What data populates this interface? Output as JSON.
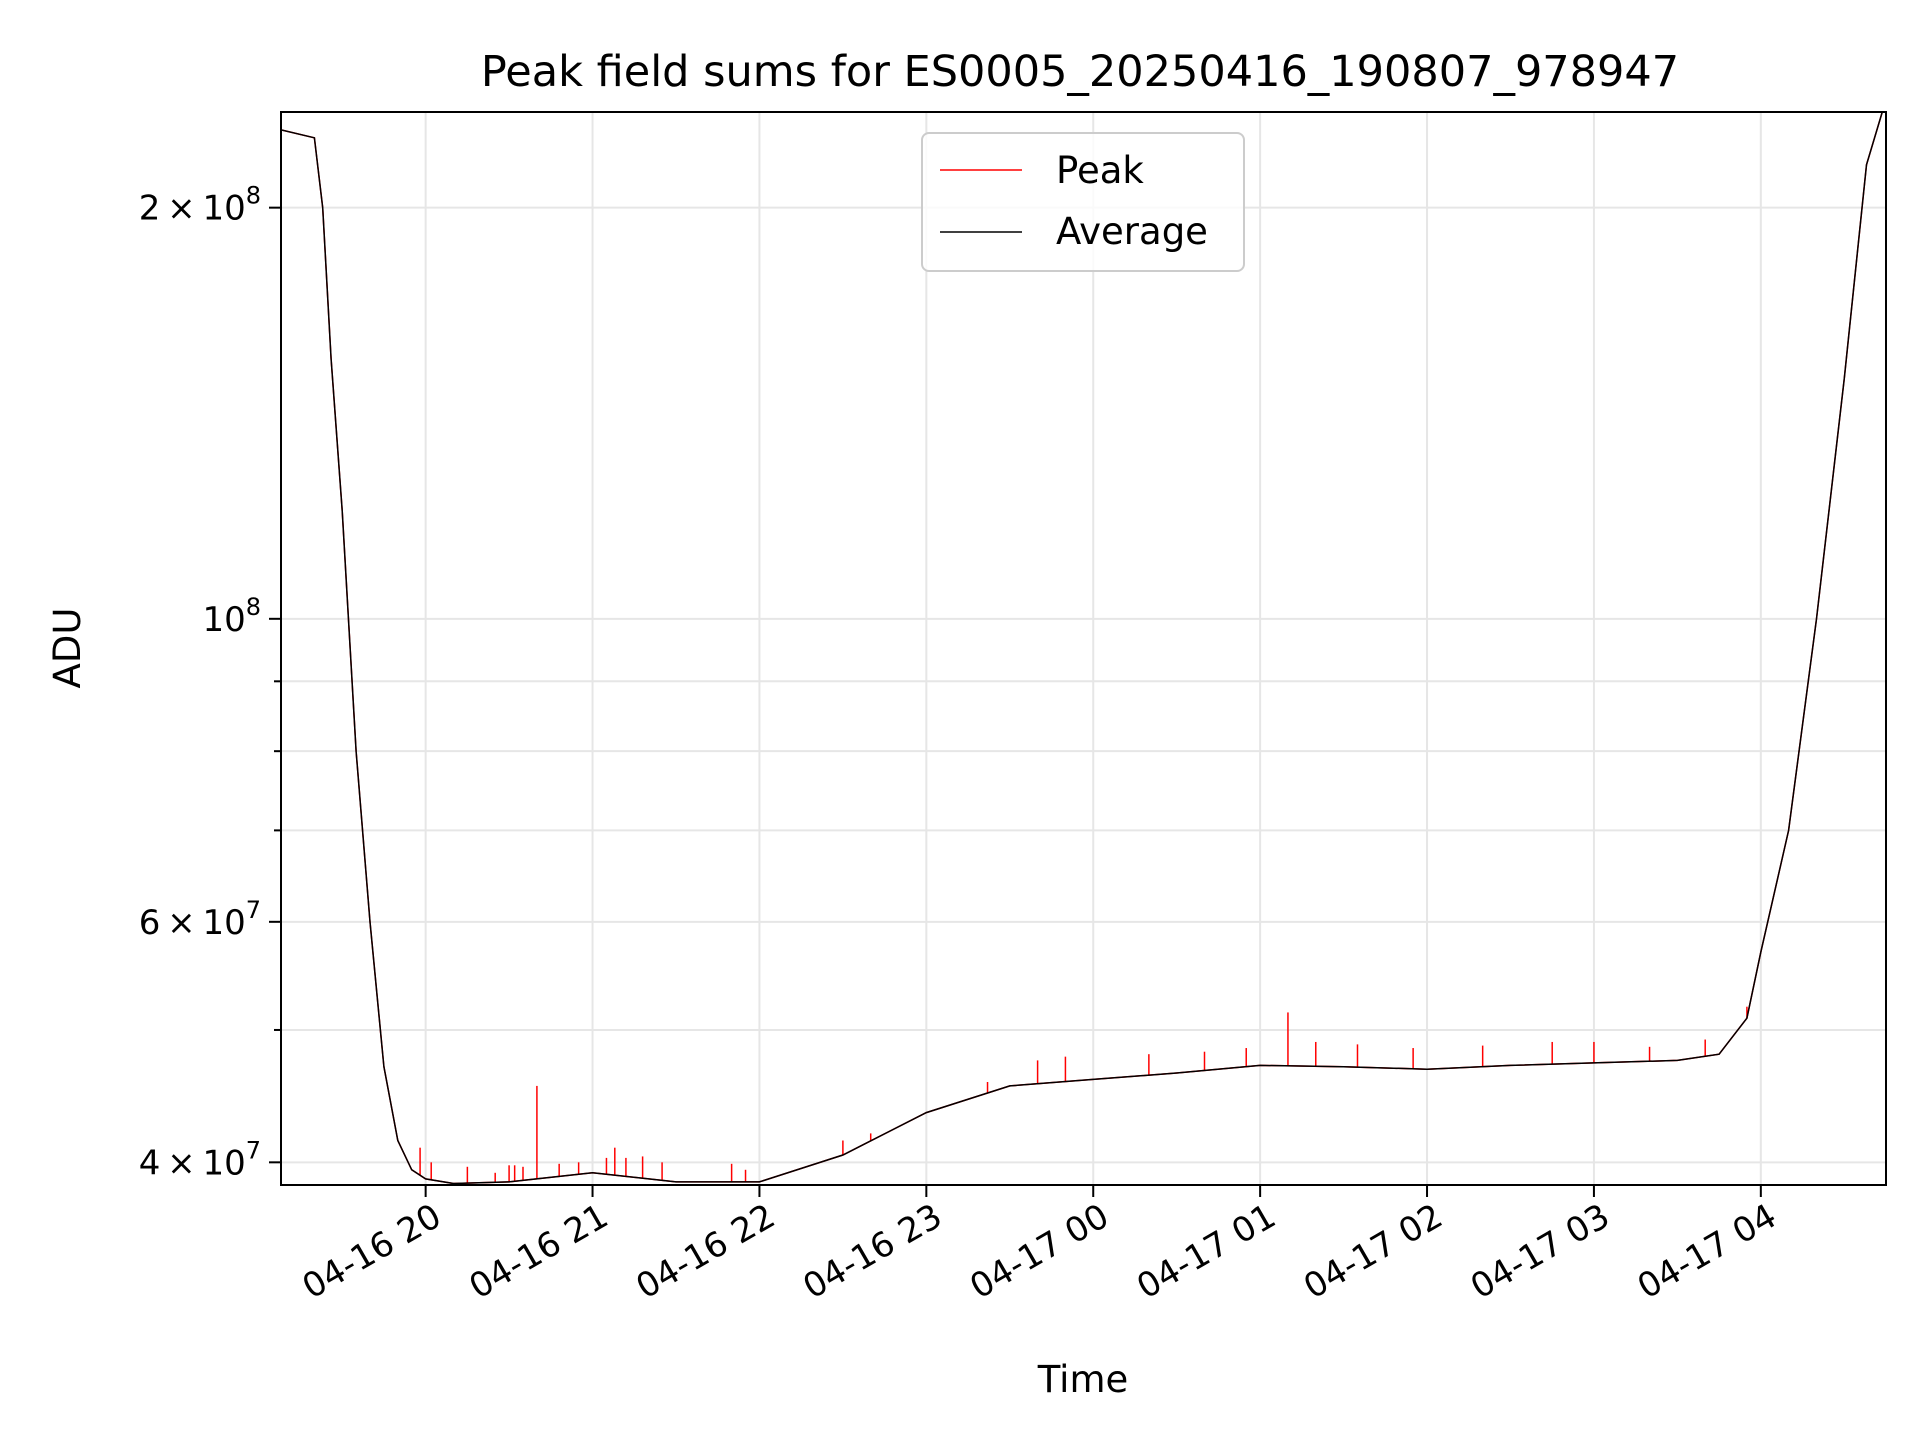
{
  "chart_data": {
    "type": "line",
    "title": "Peak field sums for ES0005_20250416_190807_978947",
    "xlabel": "Time",
    "ylabel": "ADU",
    "yscale": "log",
    "ylim": [
      38500000,
      235000000
    ],
    "xlim": [
      "2025-04-16T19:08:00",
      "2025-04-17T04:45:00"
    ],
    "grid": true,
    "legend": "upper center",
    "x_ticks": [
      {
        "value": "2025-04-16T20:00:00",
        "label": "04-16 20"
      },
      {
        "value": "2025-04-16T21:00:00",
        "label": "04-16 21"
      },
      {
        "value": "2025-04-16T22:00:00",
        "label": "04-16 22"
      },
      {
        "value": "2025-04-16T23:00:00",
        "label": "04-16 23"
      },
      {
        "value": "2025-04-17T00:00:00",
        "label": "04-17 00"
      },
      {
        "value": "2025-04-17T01:00:00",
        "label": "04-17 01"
      },
      {
        "value": "2025-04-17T02:00:00",
        "label": "04-17 02"
      },
      {
        "value": "2025-04-17T03:00:00",
        "label": "04-17 03"
      },
      {
        "value": "2025-04-17T04:00:00",
        "label": "04-17 04"
      }
    ],
    "y_major_ticks": [
      {
        "value": 40000000,
        "base": "4 × 10",
        "exp": "7"
      },
      {
        "value": 60000000,
        "base": "6 × 10",
        "exp": "7"
      },
      {
        "value": 100000000,
        "base": "10",
        "exp": "8"
      },
      {
        "value": 200000000,
        "base": "2 × 10",
        "exp": "8"
      }
    ],
    "y_minor_ticks": [
      50000000,
      70000000,
      80000000,
      90000000
    ],
    "series": [
      {
        "name": "Average",
        "color": "#000000",
        "x": [
          "2025-04-16T19:08:00",
          "2025-04-16T19:20:00",
          "2025-04-16T19:23:00",
          "2025-04-16T19:26:00",
          "2025-04-16T19:30:00",
          "2025-04-16T19:35:00",
          "2025-04-16T19:40:00",
          "2025-04-16T19:45:00",
          "2025-04-16T19:50:00",
          "2025-04-16T19:55:00",
          "2025-04-16T20:00:00",
          "2025-04-16T20:10:00",
          "2025-04-16T20:30:00",
          "2025-04-16T21:00:00",
          "2025-04-16T21:30:00",
          "2025-04-16T22:00:00",
          "2025-04-16T22:30:00",
          "2025-04-16T23:00:00",
          "2025-04-16T23:30:00",
          "2025-04-17T00:00:00",
          "2025-04-17T00:30:00",
          "2025-04-17T01:00:00",
          "2025-04-17T01:30:00",
          "2025-04-17T02:00:00",
          "2025-04-17T02:30:00",
          "2025-04-17T03:00:00",
          "2025-04-17T03:30:00",
          "2025-04-17T03:45:00",
          "2025-04-17T03:55:00",
          "2025-04-17T04:00:00",
          "2025-04-17T04:10:00",
          "2025-04-17T04:20:00",
          "2025-04-17T04:30:00",
          "2025-04-17T04:38:00",
          "2025-04-17T04:45:00"
        ],
        "y": [
          228000000,
          225000000,
          200000000,
          155000000,
          120000000,
          80000000,
          60000000,
          47000000,
          41500000,
          39500000,
          38900000,
          38600000,
          38700000,
          39300000,
          38700000,
          38700000,
          40500000,
          43500000,
          45500000,
          46000000,
          46500000,
          47100000,
          47000000,
          46800000,
          47100000,
          47300000,
          47500000,
          48000000,
          51000000,
          57000000,
          70000000,
          100000000,
          150000000,
          215000000,
          240000000
        ]
      },
      {
        "name": "Peak",
        "color": "#ff0000",
        "x": [
          "2025-04-16T19:08:00",
          "2025-04-16T19:20:00",
          "2025-04-16T19:23:00",
          "2025-04-16T19:26:00",
          "2025-04-16T19:30:00",
          "2025-04-16T19:35:00",
          "2025-04-16T19:40:00",
          "2025-04-16T19:45:00",
          "2025-04-16T19:50:00",
          "2025-04-16T19:55:00",
          "2025-04-16T20:00:00",
          "2025-04-16T20:10:00",
          "2025-04-16T20:30:00",
          "2025-04-16T21:00:00",
          "2025-04-16T21:30:00",
          "2025-04-16T22:00:00",
          "2025-04-16T22:30:00",
          "2025-04-16T23:00:00",
          "2025-04-16T23:30:00",
          "2025-04-17T00:00:00",
          "2025-04-17T00:30:00",
          "2025-04-17T01:00:00",
          "2025-04-17T01:30:00",
          "2025-04-17T02:00:00",
          "2025-04-17T02:30:00",
          "2025-04-17T03:00:00",
          "2025-04-17T03:30:00",
          "2025-04-17T03:45:00",
          "2025-04-17T03:55:00",
          "2025-04-17T04:00:00",
          "2025-04-17T04:10:00",
          "2025-04-17T04:20:00",
          "2025-04-17T04:30:00",
          "2025-04-17T04:38:00",
          "2025-04-17T04:45:00"
        ],
        "y": [
          228000000,
          225000000,
          200000000,
          155000000,
          120000000,
          80000000,
          60000000,
          47000000,
          41500000,
          39500000,
          38900000,
          38600000,
          38700000,
          39300000,
          38700000,
          38700000,
          40500000,
          43500000,
          45500000,
          46000000,
          46500000,
          47100000,
          47000000,
          46800000,
          47100000,
          47300000,
          47500000,
          48000000,
          51000000,
          57000000,
          70000000,
          100000000,
          150000000,
          215000000,
          240000000
        ]
      }
    ],
    "peak_spikes": [
      {
        "x": "2025-04-16T19:58:00",
        "y": 41000000
      },
      {
        "x": "2025-04-16T20:02:00",
        "y": 40000000
      },
      {
        "x": "2025-04-16T20:15:00",
        "y": 39700000
      },
      {
        "x": "2025-04-16T20:25:00",
        "y": 39300000
      },
      {
        "x": "2025-04-16T20:30:00",
        "y": 39800000
      },
      {
        "x": "2025-04-16T20:32:00",
        "y": 39800000
      },
      {
        "x": "2025-04-16T20:35:00",
        "y": 39700000
      },
      {
        "x": "2025-04-16T20:40:00",
        "y": 45500000
      },
      {
        "x": "2025-04-16T20:48:00",
        "y": 39900000
      },
      {
        "x": "2025-04-16T20:55:00",
        "y": 40000000
      },
      {
        "x": "2025-04-16T21:05:00",
        "y": 40300000
      },
      {
        "x": "2025-04-16T21:08:00",
        "y": 41000000
      },
      {
        "x": "2025-04-16T21:12:00",
        "y": 40300000
      },
      {
        "x": "2025-04-16T21:18:00",
        "y": 40400000
      },
      {
        "x": "2025-04-16T21:25:00",
        "y": 40000000
      },
      {
        "x": "2025-04-16T21:50:00",
        "y": 39900000
      },
      {
        "x": "2025-04-16T21:55:00",
        "y": 39500000
      },
      {
        "x": "2025-04-16T22:30:00",
        "y": 41500000
      },
      {
        "x": "2025-04-16T22:40:00",
        "y": 42000000
      },
      {
        "x": "2025-04-16T23:22:00",
        "y": 45800000
      },
      {
        "x": "2025-04-16T23:40:00",
        "y": 47500000
      },
      {
        "x": "2025-04-16T23:50:00",
        "y": 47800000
      },
      {
        "x": "2025-04-17T00:20:00",
        "y": 48000000
      },
      {
        "x": "2025-04-17T00:40:00",
        "y": 48200000
      },
      {
        "x": "2025-04-17T00:55:00",
        "y": 48500000
      },
      {
        "x": "2025-04-17T01:10:00",
        "y": 51500000
      },
      {
        "x": "2025-04-17T01:20:00",
        "y": 49000000
      },
      {
        "x": "2025-04-17T01:35:00",
        "y": 48800000
      },
      {
        "x": "2025-04-17T01:55:00",
        "y": 48500000
      },
      {
        "x": "2025-04-17T02:20:00",
        "y": 48700000
      },
      {
        "x": "2025-04-17T02:45:00",
        "y": 49000000
      },
      {
        "x": "2025-04-17T03:00:00",
        "y": 49000000
      },
      {
        "x": "2025-04-17T03:20:00",
        "y": 48600000
      },
      {
        "x": "2025-04-17T03:40:00",
        "y": 49200000
      },
      {
        "x": "2025-04-17T03:55:00",
        "y": 52000000
      }
    ]
  }
}
